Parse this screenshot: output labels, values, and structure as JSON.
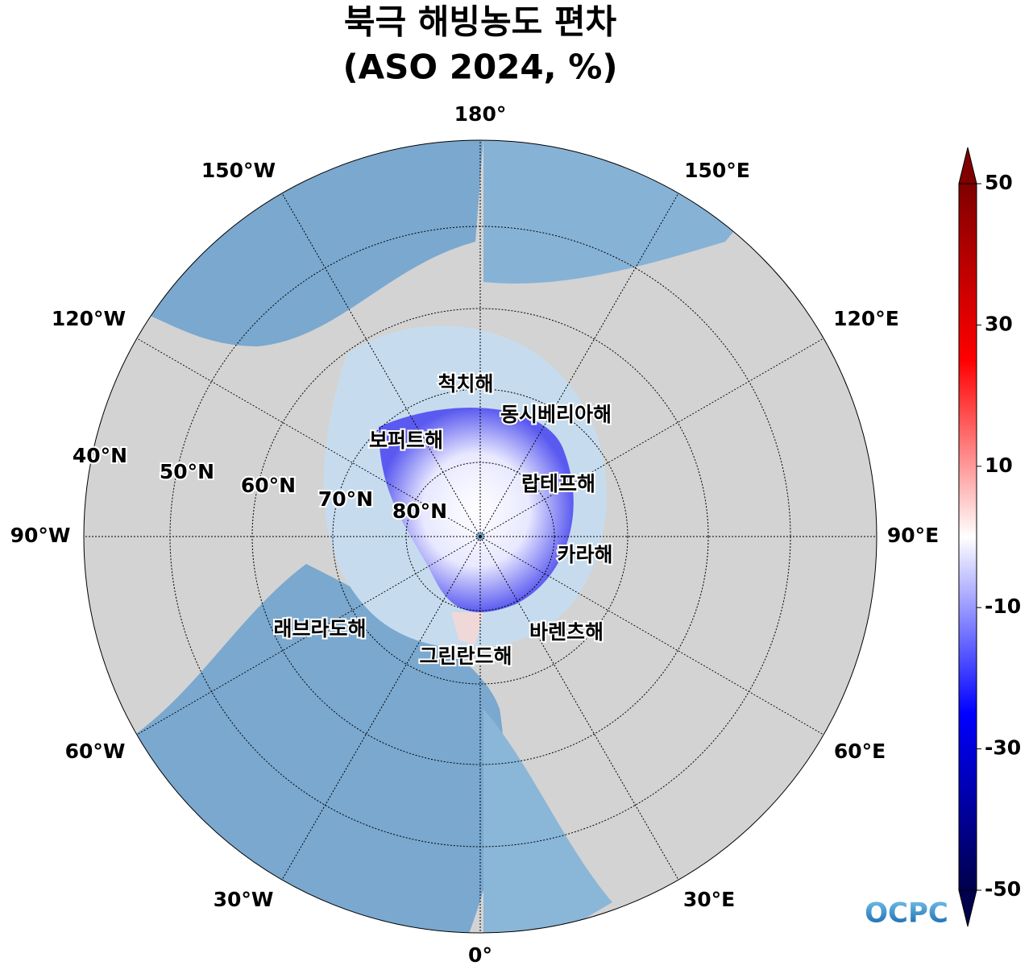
{
  "map": {
    "title": [
      "북극 해빙농도 편차",
      "(ASO 2024, %)"
    ],
    "longitude_labels": [
      "180°",
      "150°E",
      "120°E",
      "90°E",
      "60°E",
      "30°E",
      "0°",
      "30°W",
      "60°W",
      "90°W",
      "120°W",
      "150°W"
    ],
    "latitude_labels": [
      "40°N",
      "50°N",
      "60°N",
      "70°N",
      "80°N"
    ],
    "sea_labels": [
      "척치해",
      "동시베리아해",
      "보퍼트해",
      "랍테프해",
      "카라해",
      "래브라도해",
      "바렌츠해",
      "그린란드해"
    ],
    "logo": "OCPC"
  },
  "colorbar": {
    "lim": [
      -50,
      50
    ],
    "ticks": [
      -50,
      -30,
      -10,
      10,
      30,
      50
    ],
    "colors": [
      "#00004c",
      "#0000ff",
      "#ffffff",
      "#ff0000",
      "#800000"
    ]
  }
}
